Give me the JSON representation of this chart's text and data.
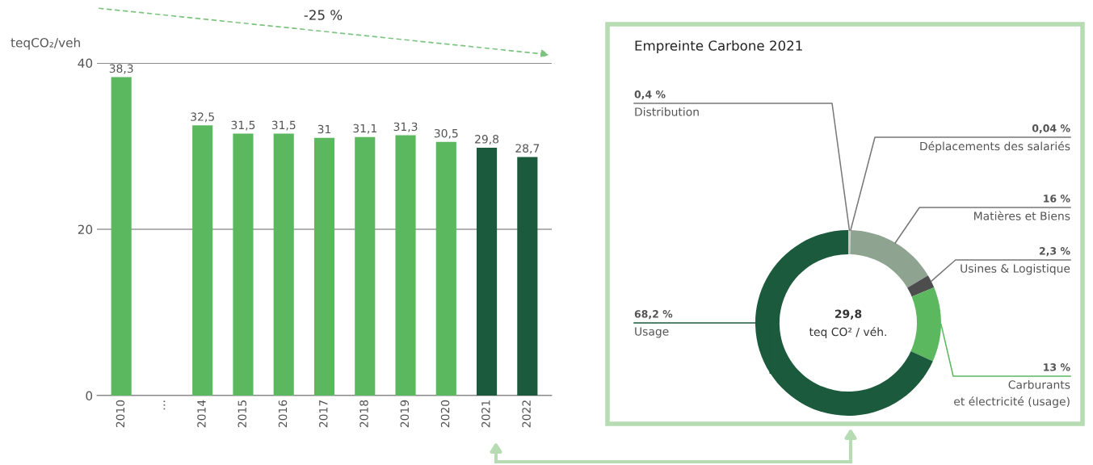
{
  "chart_data": [
    {
      "type": "bar",
      "ylabel": "teqCO₂/veh",
      "annotations": [
        "-25 %"
      ],
      "categories": [
        "2010",
        "…",
        "2014",
        "2015",
        "2016",
        "2017",
        "2018",
        "2019",
        "2020",
        "2021",
        "2022"
      ],
      "values": [
        38.3,
        null,
        32.5,
        31.5,
        31.5,
        31,
        31.1,
        31.3,
        30.5,
        29.8,
        28.7
      ],
      "colors": [
        "#5cb85f",
        "#5cb85f",
        "#5cb85f",
        "#5cb85f",
        "#5cb85f",
        "#5cb85f",
        "#5cb85f",
        "#5cb85f",
        "#5cb85f",
        "#1b5a3c",
        "#1b5a3c"
      ],
      "value_labels": [
        "38,3",
        null,
        "32,5",
        "31,5",
        "31,5",
        "31",
        "31,1",
        "31,3",
        "30,5",
        "29,8",
        "28,7"
      ],
      "ylim": [
        0,
        40
      ],
      "yticks": [
        0,
        20,
        40
      ],
      "grid": "y"
    },
    {
      "type": "donut",
      "title": "Empreinte Carbone 2021",
      "annotations": [
        "29,8",
        "teq CO² / véh."
      ],
      "categories": [
        "Distribution",
        "Déplacements des salariés",
        "Matières et Biens",
        "Usines & Logistique",
        "Carburants\net électricité (usage)",
        "Usage"
      ],
      "values": [
        0.4,
        0.04,
        16,
        2.3,
        13,
        68.2
      ],
      "colors": [
        "#c5cbc4",
        "#b0b8b0",
        "#8fa391",
        "#4d4d4d",
        "#5cb85f",
        "#1b5a3c"
      ],
      "value_labels": [
        "0,4 %",
        "0,04 %",
        "16 %",
        "2,3 %",
        "13 %",
        "68,2 %"
      ]
    }
  ]
}
